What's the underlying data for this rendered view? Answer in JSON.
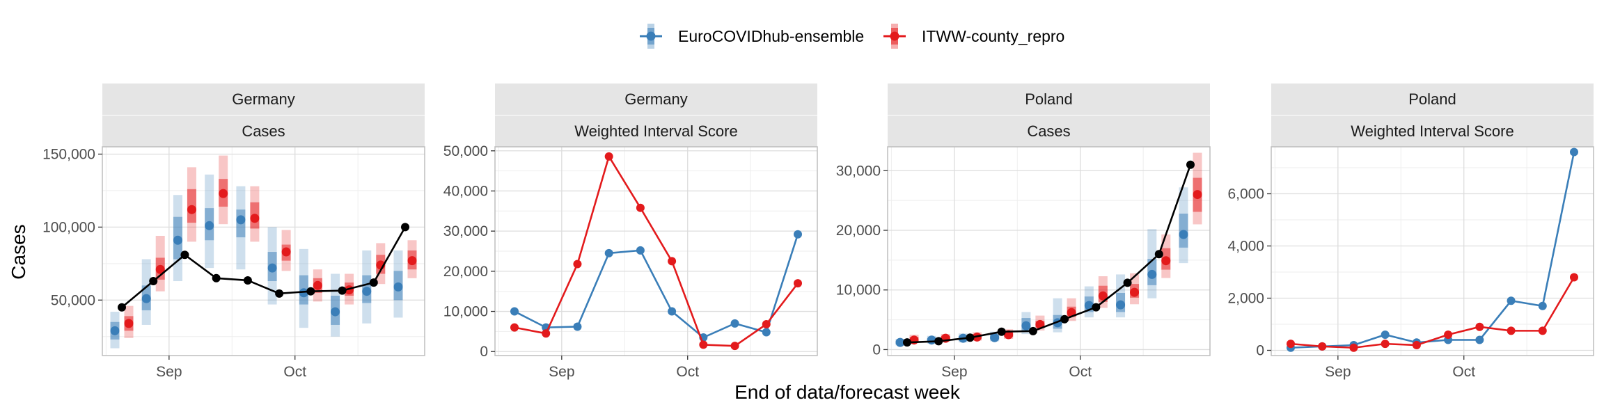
{
  "legend": [
    {
      "name": "EuroCOVIDhub-ensemble",
      "color": "#3a7eb8"
    },
    {
      "name": "ITWW-county_repro",
      "color": "#e31a1c"
    }
  ],
  "colors": {
    "observed": "#000000",
    "strip_bg": "#e5e5e5",
    "grid_major": "#dddddd",
    "grid_minor": "#eeeeee",
    "panel_border": "#bdbdbd"
  },
  "axes": {
    "x_title": "End of data/forecast week",
    "y_title": "Cases"
  },
  "chart_data": [
    {
      "type": "line",
      "strip_top": "Germany",
      "strip_bottom": "Cases",
      "x_ticks": [
        "Sep",
        "Oct"
      ],
      "ylim": [
        12000,
        155000
      ],
      "y_ticks": [
        50000,
        100000,
        150000
      ],
      "y_tick_labels": [
        "50,000",
        "100,000",
        "150,000"
      ],
      "observed": [
        45000,
        63000,
        81000,
        65000,
        63500,
        54500,
        56000,
        56500,
        62000,
        100000
      ],
      "series": [
        {
          "name": "EuroCOVIDhub-ensemble",
          "median": [
            29000,
            51000,
            91000,
            101000,
            105000,
            72000,
            55000,
            42000,
            56000,
            59000
          ],
          "inner": [
            [
              23000,
              35000
            ],
            [
              43000,
              60000
            ],
            [
              78000,
              107000
            ],
            [
              91000,
              113000
            ],
            [
              93000,
              112000
            ],
            [
              63000,
              83000
            ],
            [
              47000,
              67000
            ],
            [
              33000,
              53000
            ],
            [
              48000,
              67000
            ],
            [
              50000,
              70000
            ]
          ],
          "outer": [
            [
              17000,
              42000
            ],
            [
              33000,
              78000
            ],
            [
              63000,
              122000
            ],
            [
              72000,
              136000
            ],
            [
              71000,
              128000
            ],
            [
              47000,
              100000
            ],
            [
              31000,
              85000
            ],
            [
              25000,
              68000
            ],
            [
              34000,
              84000
            ],
            [
              38000,
              84000
            ]
          ]
        },
        {
          "name": "ITWW-county_repro",
          "median": [
            34000,
            71000,
            112000,
            123000,
            106000,
            83000,
            60000,
            57000,
            74000,
            77000
          ],
          "inner": [
            [
              29000,
              39000
            ],
            [
              64000,
              79000
            ],
            [
              103000,
              126000
            ],
            [
              114000,
              133000
            ],
            [
              99000,
              117000
            ],
            [
              77000,
              88000
            ],
            [
              55000,
              65000
            ],
            [
              53000,
              62000
            ],
            [
              68000,
              81000
            ],
            [
              71000,
              84000
            ]
          ],
          "outer": [
            [
              24000,
              46000
            ],
            [
              56000,
              94000
            ],
            [
              90000,
              141000
            ],
            [
              102000,
              149000
            ],
            [
              90000,
              128000
            ],
            [
              70000,
              98000
            ],
            [
              49000,
              71000
            ],
            [
              47000,
              68000
            ],
            [
              61000,
              89000
            ],
            [
              65000,
              91000
            ]
          ]
        }
      ]
    },
    {
      "type": "line",
      "strip_top": "Germany",
      "strip_bottom": "Weighted Interval Score",
      "x_ticks": [
        "Sep",
        "Oct"
      ],
      "ylim": [
        -1000,
        51000
      ],
      "y_ticks": [
        0,
        10000,
        20000,
        30000,
        40000,
        50000
      ],
      "y_tick_labels": [
        "0",
        "10,000",
        "20,000",
        "30,000",
        "40,000",
        "50,000"
      ],
      "series": [
        {
          "name": "EuroCOVIDhub-ensemble",
          "values": [
            10000,
            6000,
            6200,
            24500,
            25200,
            10000,
            3500,
            7000,
            4800,
            29200
          ]
        },
        {
          "name": "ITWW-county_repro",
          "values": [
            6000,
            4500,
            21800,
            48600,
            35800,
            22500,
            1700,
            1400,
            6800,
            17000
          ]
        }
      ]
    },
    {
      "type": "line",
      "strip_top": "Poland",
      "strip_bottom": "Cases",
      "x_ticks": [
        "Sep",
        "Oct"
      ],
      "ylim": [
        -1000,
        34000
      ],
      "y_ticks": [
        0,
        10000,
        20000,
        30000
      ],
      "y_tick_labels": [
        "0",
        "10,000",
        "20,000",
        "30,000"
      ],
      "observed": [
        1200,
        1400,
        2000,
        3000,
        3100,
        5100,
        7100,
        11200,
        16000,
        31000
      ],
      "series": [
        {
          "name": "EuroCOVIDhub-ensemble",
          "median": [
            1200,
            1600,
            1900,
            2000,
            4000,
            4500,
            7400,
            7500,
            12600,
            19300
          ],
          "inner": [
            [
              900,
              1500
            ],
            [
              1200,
              1900
            ],
            [
              1500,
              2300
            ],
            [
              1700,
              2500
            ],
            [
              3200,
              5300
            ],
            [
              3500,
              5800
            ],
            [
              6300,
              8900
            ],
            [
              6300,
              9500
            ],
            [
              10800,
              15200
            ],
            [
              17100,
              22800
            ]
          ],
          "outer": [
            [
              700,
              1800
            ],
            [
              1000,
              2300
            ],
            [
              1200,
              2700
            ],
            [
              1400,
              3000
            ],
            [
              2600,
              6300
            ],
            [
              2900,
              8600
            ],
            [
              5400,
              10600
            ],
            [
              5400,
              12600
            ],
            [
              8600,
              20200
            ],
            [
              14500,
              27200
            ]
          ]
        },
        {
          "name": "ITWW-county_repro",
          "median": [
            1600,
            1900,
            2100,
            2500,
            4200,
            6200,
            9000,
            9600,
            14900,
            26000
          ],
          "inner": [
            [
              1300,
              2100
            ],
            [
              1500,
              2300
            ],
            [
              1700,
              2600
            ],
            [
              2100,
              3000
            ],
            [
              3700,
              4800
            ],
            [
              5500,
              7200
            ],
            [
              8000,
              10700
            ],
            [
              8700,
              11000
            ],
            [
              13400,
              17000
            ],
            [
              23100,
              28800
            ]
          ],
          "outer": [
            [
              1100,
              2500
            ],
            [
              1300,
              2600
            ],
            [
              1500,
              2900
            ],
            [
              1800,
              3400
            ],
            [
              3200,
              5700
            ],
            [
              4800,
              8600
            ],
            [
              7000,
              12300
            ],
            [
              7600,
              12800
            ],
            [
              12000,
              19300
            ],
            [
              21000,
              33000
            ]
          ]
        }
      ]
    },
    {
      "type": "line",
      "strip_top": "Poland",
      "strip_bottom": "Weighted Interval Score",
      "x_ticks": [
        "Sep",
        "Oct"
      ],
      "ylim": [
        -200,
        7800
      ],
      "y_ticks": [
        0,
        2000,
        4000,
        6000
      ],
      "y_tick_labels": [
        "0",
        "2,000",
        "4,000",
        "6,000"
      ],
      "series": [
        {
          "name": "EuroCOVIDhub-ensemble",
          "values": [
            100,
            150,
            200,
            600,
            300,
            400,
            400,
            1900,
            1700,
            7600
          ]
        },
        {
          "name": "ITWW-county_repro",
          "values": [
            250,
            150,
            100,
            250,
            200,
            600,
            900,
            750,
            750,
            2800
          ]
        }
      ]
    }
  ]
}
